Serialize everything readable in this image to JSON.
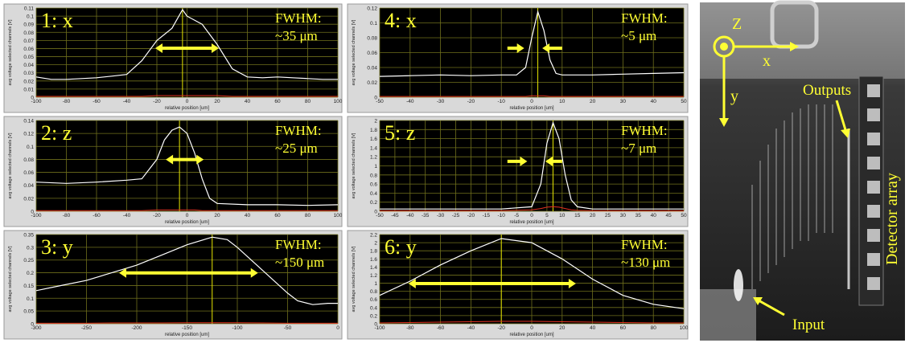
{
  "chart_data": [
    {
      "type": "line",
      "title": "1: x",
      "annotations": [
        "FWHM:",
        "~35 μm"
      ],
      "x_label": "relative position [um]",
      "y_label": "avg voltage selected channels [V]",
      "x": [
        -100,
        -90,
        -80,
        -70,
        -60,
        -50,
        -40,
        -30,
        -20,
        -10,
        -3,
        0,
        10,
        20,
        30,
        40,
        50,
        60,
        70,
        80,
        90,
        100
      ],
      "series": [
        {
          "color": "#ffffff",
          "values": [
            0.025,
            0.022,
            0.022,
            0.023,
            0.024,
            0.026,
            0.028,
            0.045,
            0.07,
            0.085,
            0.108,
            0.1,
            0.09,
            0.065,
            0.035,
            0.025,
            0.024,
            0.025,
            0.024,
            0.023,
            0.022,
            0.022
          ]
        },
        {
          "color": "#e03020",
          "values": [
            0.001,
            0.001,
            0.001,
            0.001,
            0.001,
            0.001,
            0.001,
            0.001,
            0.002,
            0.002,
            0.002,
            0.002,
            0.002,
            0.002,
            0.001,
            0.001,
            0.001,
            0.001,
            0.001,
            0.001,
            0.001,
            0.001
          ]
        }
      ],
      "xlim": [
        -100,
        100
      ],
      "xticks": [
        -100,
        -80,
        -60,
        -40,
        -20,
        0,
        20,
        40,
        60,
        80,
        100
      ],
      "ylim": [
        0,
        0.11
      ],
      "yticks": [
        0,
        0.01,
        0.02,
        0.03,
        0.04,
        0.05,
        0.06,
        0.07,
        0.08,
        0.09,
        0.1,
        0.11
      ],
      "grid": true
    },
    {
      "type": "line",
      "title": "2: z",
      "annotations": [
        "FWHM:",
        "~25 μm"
      ],
      "x_label": "relative position [um]",
      "y_label": "avg voltage selected channels [V]",
      "x": [
        -100,
        -80,
        -60,
        -40,
        -30,
        -20,
        -15,
        -10,
        -5,
        0,
        5,
        10,
        15,
        20,
        40,
        60,
        80,
        100
      ],
      "series": [
        {
          "color": "#ffffff",
          "values": [
            0.045,
            0.043,
            0.045,
            0.048,
            0.05,
            0.08,
            0.11,
            0.125,
            0.13,
            0.12,
            0.09,
            0.05,
            0.02,
            0.012,
            0.01,
            0.01,
            0.009,
            0.01
          ]
        },
        {
          "color": "#e03020",
          "values": [
            0.001,
            0.001,
            0.001,
            0.001,
            0.001,
            0.002,
            0.002,
            0.002,
            0.002,
            0.002,
            0.002,
            0.001,
            0.001,
            0.001,
            0.001,
            0.001,
            0.001,
            0.001
          ]
        }
      ],
      "xlim": [
        -100,
        100
      ],
      "xticks": [
        -100,
        -80,
        -60,
        -40,
        -20,
        0,
        20,
        40,
        60,
        80,
        100
      ],
      "ylim": [
        0,
        0.14
      ],
      "yticks": [
        0,
        0.02,
        0.04,
        0.06,
        0.08,
        0.1,
        0.12,
        0.14
      ],
      "grid": true
    },
    {
      "type": "line",
      "title": "3: y",
      "annotations": [
        "FWHM:",
        "~150 μm"
      ],
      "x_label": "relative position [um]",
      "y_label": "avg voltage selected channels [V]",
      "x": [
        -300,
        -275,
        -250,
        -225,
        -200,
        -175,
        -150,
        -125,
        -110,
        -100,
        -75,
        -50,
        -40,
        -25,
        -10,
        0
      ],
      "series": [
        {
          "color": "#ffffff",
          "values": [
            0.13,
            0.15,
            0.17,
            0.2,
            0.23,
            0.27,
            0.31,
            0.34,
            0.33,
            0.3,
            0.21,
            0.12,
            0.09,
            0.075,
            0.08,
            0.08
          ]
        },
        {
          "color": "#e03020",
          "values": [
            0.002,
            0.002,
            0.002,
            0.003,
            0.003,
            0.003,
            0.004,
            0.004,
            0.004,
            0.004,
            0.003,
            0.002,
            0.002,
            0.002,
            0.002,
            0.002
          ]
        }
      ],
      "xlim": [
        -300,
        0
      ],
      "xticks": [
        -300,
        -250,
        -200,
        -150,
        -100,
        -50,
        0
      ],
      "ylim": [
        0,
        0.35
      ],
      "yticks": [
        0,
        0.05,
        0.1,
        0.15,
        0.2,
        0.25,
        0.3,
        0.35
      ],
      "grid": true
    },
    {
      "type": "line",
      "title": "4: x",
      "annotations": [
        "FWHM:",
        "~5 μm"
      ],
      "x_label": "relative position [um]",
      "y_label": "avg voltage selected channels [V]",
      "x": [
        -50,
        -40,
        -30,
        -20,
        -10,
        -5,
        -2,
        0,
        2,
        4,
        6,
        8,
        10,
        20,
        30,
        40,
        50
      ],
      "series": [
        {
          "color": "#ffffff",
          "values": [
            0.028,
            0.029,
            0.03,
            0.029,
            0.03,
            0.03,
            0.04,
            0.08,
            0.115,
            0.09,
            0.05,
            0.032,
            0.03,
            0.03,
            0.031,
            0.032,
            0.033
          ]
        },
        {
          "color": "#e03020",
          "values": [
            0.001,
            0.001,
            0.001,
            0.001,
            0.001,
            0.001,
            0.001,
            0.002,
            0.002,
            0.002,
            0.001,
            0.001,
            0.001,
            0.001,
            0.001,
            0.001,
            0.001
          ]
        }
      ],
      "xlim": [
        -50,
        50
      ],
      "xticks": [
        -50,
        -40,
        -30,
        -20,
        -10,
        0,
        10,
        20,
        30,
        40,
        50
      ],
      "ylim": [
        0,
        0.12
      ],
      "yticks": [
        0,
        0.02,
        0.04,
        0.06,
        0.08,
        0.1,
        0.12
      ],
      "grid": true
    },
    {
      "type": "line",
      "title": "5: z",
      "annotations": [
        "FWHM:",
        "~7 μm"
      ],
      "x_label": "relative position [um]",
      "y_label": "avg voltage selected channels [V]",
      "x": [
        -50,
        -10,
        0,
        3,
        5,
        7,
        9,
        11,
        13,
        15,
        20,
        50
      ],
      "series": [
        {
          "color": "#ffffff",
          "values": [
            0.05,
            0.05,
            0.1,
            0.6,
            1.5,
            1.95,
            1.6,
            0.8,
            0.25,
            0.1,
            0.05,
            0.05
          ]
        },
        {
          "color": "#e03020",
          "values": [
            0.01,
            0.01,
            0.03,
            0.06,
            0.09,
            0.1,
            0.09,
            0.06,
            0.03,
            0.02,
            0.01,
            0.01
          ]
        }
      ],
      "xlim": [
        -50,
        50
      ],
      "xticks": [
        -50,
        -45,
        -40,
        -35,
        -30,
        -25,
        -20,
        -15,
        -10,
        -5,
        0,
        5,
        10,
        15,
        20,
        25,
        30,
        35,
        40,
        45,
        50
      ],
      "ylim": [
        0,
        2
      ],
      "yticks": [
        0,
        0.2,
        0.4,
        0.6,
        0.8,
        1,
        1.2,
        1.4,
        1.6,
        1.8,
        2
      ],
      "grid": true
    },
    {
      "type": "line",
      "title": "6: y",
      "annotations": [
        "FWHM:",
        "~130 μm"
      ],
      "x_label": "relative position [um]",
      "y_label": "avg voltage selected channels [V]",
      "x": [
        -100,
        -80,
        -60,
        -40,
        -20,
        0,
        20,
        40,
        60,
        80,
        100
      ],
      "series": [
        {
          "color": "#ffffff",
          "values": [
            0.7,
            1.05,
            1.45,
            1.8,
            2.1,
            2.0,
            1.6,
            1.1,
            0.7,
            0.48,
            0.37
          ]
        },
        {
          "color": "#e03020",
          "values": [
            0.02,
            0.03,
            0.04,
            0.05,
            0.06,
            0.06,
            0.05,
            0.04,
            0.03,
            0.02,
            0.02
          ]
        }
      ],
      "xlim": [
        -100,
        100
      ],
      "xticks": [
        -100,
        -80,
        -60,
        -40,
        -20,
        0,
        20,
        40,
        60,
        80,
        100
      ],
      "ylim": [
        0,
        2.2
      ],
      "yticks": [
        0,
        0.2,
        0.4,
        0.6,
        0.8,
        1,
        1.2,
        1.4,
        1.6,
        1.8,
        2,
        2.2
      ],
      "grid": true
    }
  ],
  "photo": {
    "labels": {
      "z": "Z",
      "x": "x",
      "y": "y",
      "outputs": "Outputs",
      "detector": "Detector array",
      "input": "Input"
    }
  }
}
